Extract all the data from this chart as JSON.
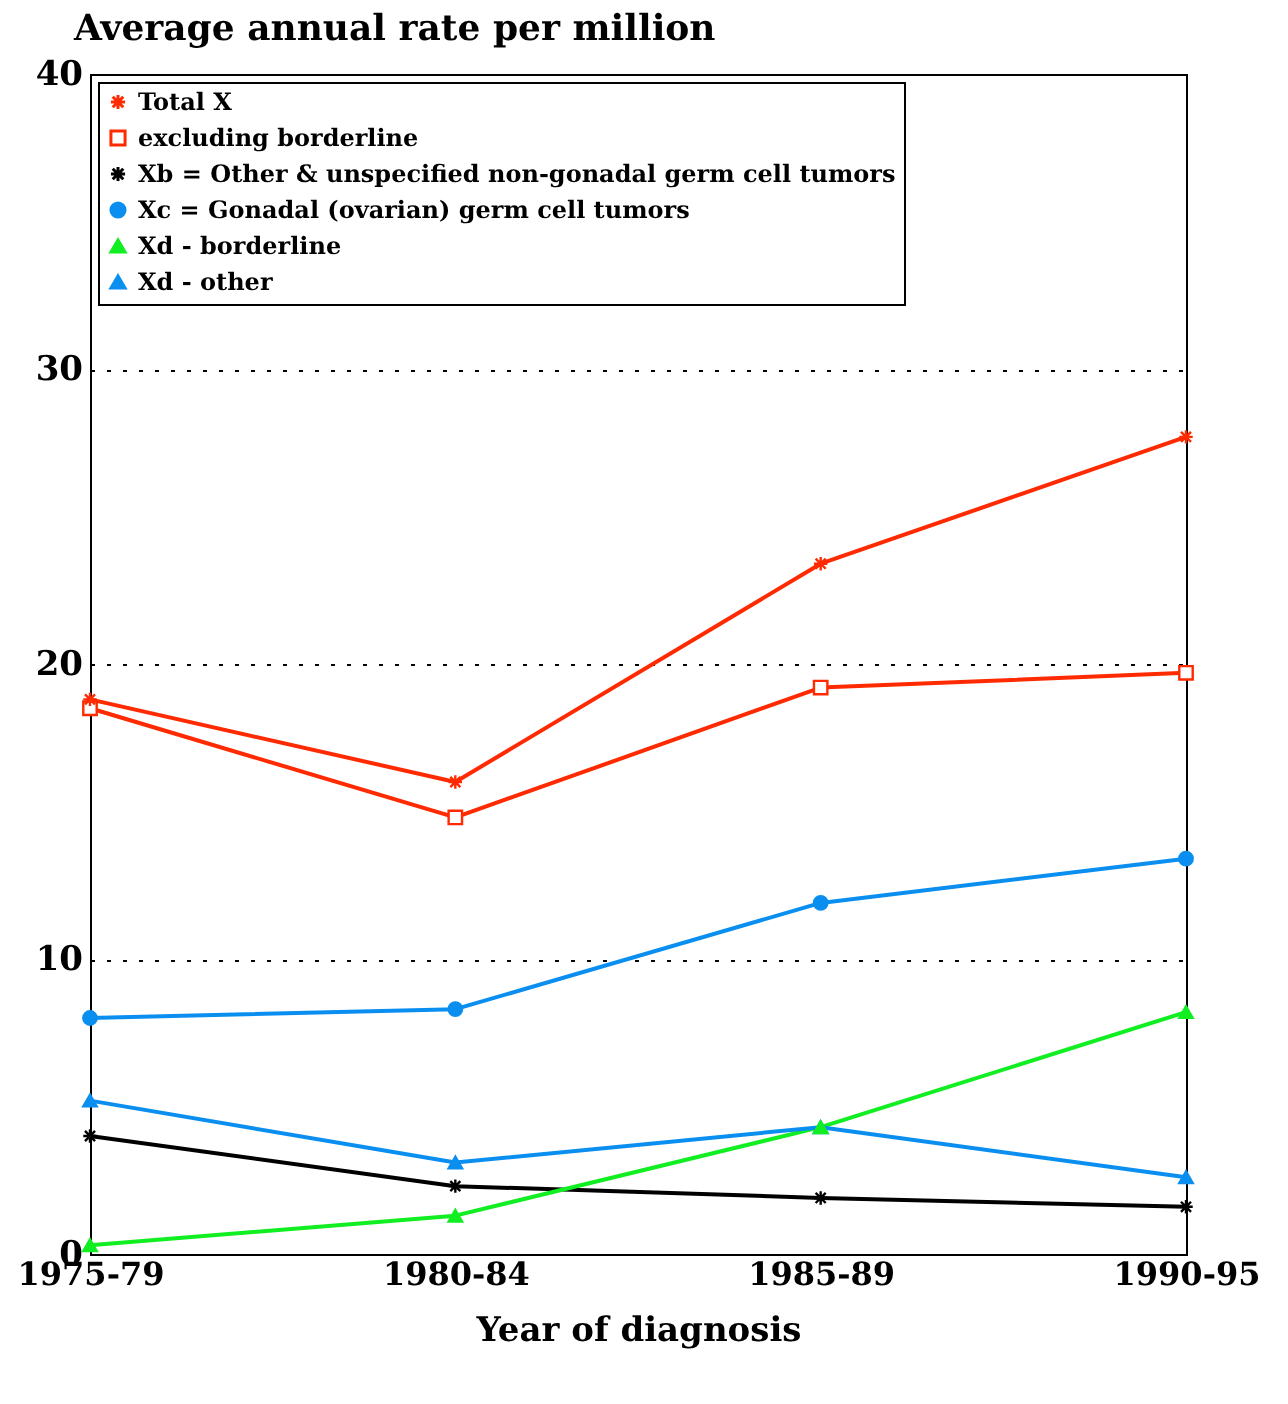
{
  "chart_data": {
    "type": "line",
    "title": "Average annual rate per million",
    "xlabel": "Year of diagnosis",
    "categories": [
      "1975-79",
      "1980-84",
      "1985-89",
      "1990-95"
    ],
    "ylim": [
      0,
      40
    ],
    "yticks": [
      0,
      10,
      20,
      30,
      40
    ],
    "grid": "y",
    "legend": "top left",
    "series": [
      {
        "name": "Total X",
        "color": "#ff2a00",
        "marker": "cross",
        "values": [
          18.8,
          16.0,
          23.4,
          27.7
        ]
      },
      {
        "name": "excluding borderline",
        "color": "#ff2a00",
        "marker": "square",
        "values": [
          18.5,
          14.8,
          19.2,
          19.7
        ]
      },
      {
        "name": "Xb = Other & unspecified non-gonadal germ cell tumors",
        "color": "#000000",
        "marker": "cross",
        "values": [
          4.0,
          2.3,
          1.9,
          1.6
        ]
      },
      {
        "name": "Xc = Gonadal (ovarian) germ cell tumors",
        "color": "#0a8ff0",
        "marker": "circle",
        "values": [
          8.0,
          8.3,
          11.9,
          13.4
        ]
      },
      {
        "name": "Xd - borderline",
        "color": "#11ee22",
        "marker": "triangle",
        "values": [
          0.3,
          1.3,
          4.3,
          8.2
        ]
      },
      {
        "name": "Xd - other",
        "color": "#0a8ff0",
        "marker": "triangle",
        "values": [
          5.2,
          3.1,
          4.3,
          2.6
        ]
      }
    ]
  }
}
